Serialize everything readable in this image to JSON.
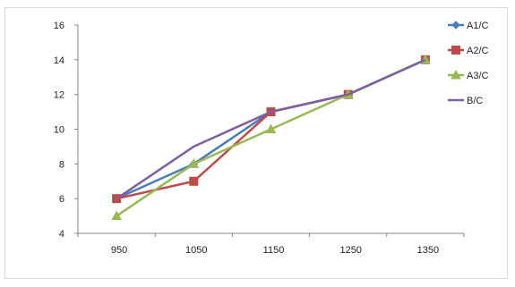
{
  "chart_data": {
    "type": "line",
    "title": "",
    "xlabel": "",
    "ylabel": "",
    "x": [
      950,
      1050,
      1150,
      1250,
      1350
    ],
    "ylim": [
      4,
      16
    ],
    "yticks": [
      4,
      6,
      8,
      10,
      12,
      14,
      16
    ],
    "grid": false,
    "legend_position": "right",
    "series": [
      {
        "name": "A1/C",
        "color": "#4a7ebb",
        "marker": "diamond",
        "values": [
          6,
          8,
          11,
          12,
          14
        ]
      },
      {
        "name": "A2/C",
        "color": "#be4b48",
        "marker": "square",
        "values": [
          6,
          7,
          11,
          12,
          14
        ]
      },
      {
        "name": "A3/C",
        "color": "#98b954",
        "marker": "triangle",
        "values": [
          5,
          8,
          10,
          12,
          14
        ]
      },
      {
        "name": "B/C",
        "color": "#7d60a0",
        "marker": "none",
        "values": [
          6,
          9,
          11,
          12,
          14
        ]
      }
    ]
  }
}
